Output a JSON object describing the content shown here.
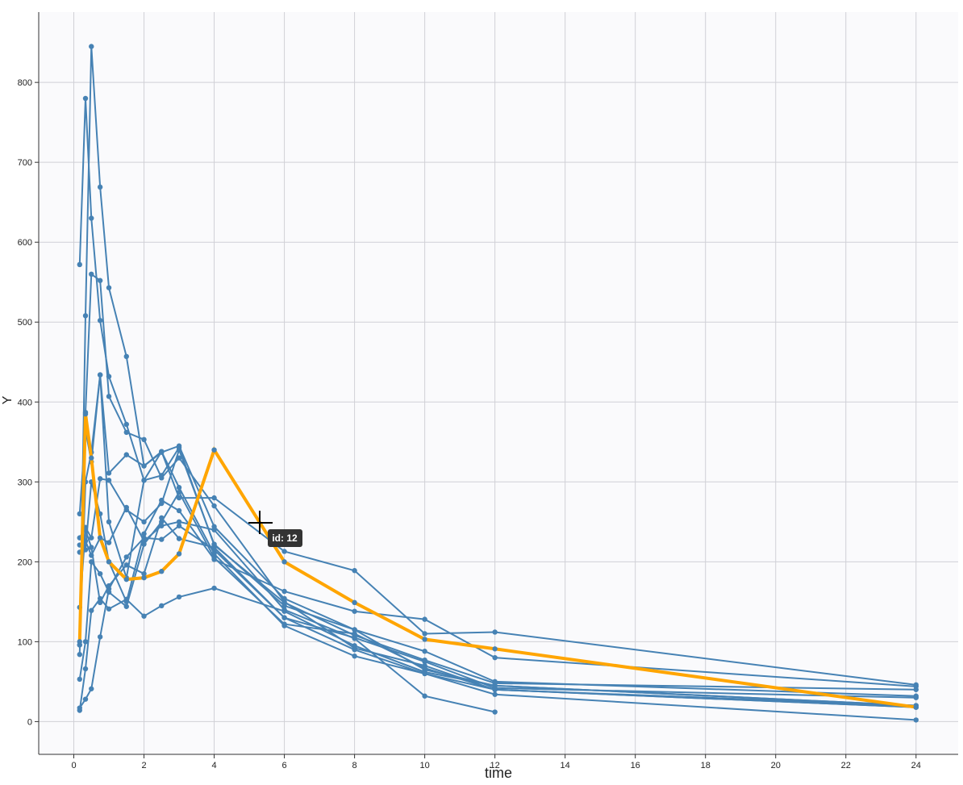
{
  "chart_data": {
    "type": "line",
    "x_label": "time",
    "y_label": "Y",
    "tooltip": "id: 12",
    "x": [
      0.167,
      0.333,
      0.5,
      0.75,
      1,
      1.5,
      2,
      2.5,
      3,
      4,
      6,
      8,
      10,
      12,
      24
    ],
    "xlim": [
      -1.0,
      25.2
    ],
    "ylim": [
      -41,
      888
    ],
    "xticks": [
      0,
      2,
      4,
      6,
      8,
      10,
      12,
      14,
      16,
      18,
      20,
      22,
      24
    ],
    "yticks": [
      0,
      100,
      200,
      300,
      400,
      500,
      600,
      700,
      800
    ],
    "grid": true,
    "series": [
      {
        "color": "#4682b4",
        "values": [
          572,
          780,
          630,
          502,
          432,
          372,
          302,
          338,
          280,
          280,
          213,
          189,
          110,
          112,
          46
        ]
      },
      {
        "color": "#4682b4",
        "values": [
          96,
          508,
          845,
          669,
          543,
          457,
          320,
          337,
          345,
          244,
          154,
          115,
          65,
          45,
          20
        ]
      },
      {
        "color": "#4682b4",
        "values": [
          84,
          387,
          560,
          552,
          407,
          362,
          353,
          305,
          330,
          270,
          150,
          92,
          70,
          40,
          18
        ]
      },
      {
        "color": "#4682b4",
        "values": [
          260,
          365,
          325,
          434,
          311,
          334,
          320,
          338,
          293,
          210,
          120,
          82,
          60,
          34,
          2
        ]
      },
      {
        "color": "#4682b4",
        "values": [
          230,
          243,
          230,
          304,
          302,
          265,
          250,
          273,
          340,
          222,
          145,
          115,
          88,
          50,
          32
        ]
      },
      {
        "color": "#4682b4",
        "values": [
          212,
          215,
          300,
          260,
          200,
          150,
          235,
          277,
          264,
          203,
          163,
          138,
          128,
          80,
          44
        ]
      },
      {
        "color": "#4682b4",
        "values": [
          17,
          28,
          41,
          106,
          166,
          206,
          230,
          228,
          245,
          215,
          130,
          105,
          75,
          42,
          30
        ]
      },
      {
        "color": "#4682b4",
        "values": [
          14,
          66,
          139,
          154,
          141,
          153,
          132,
          145,
          156,
          167,
          138,
          95,
          62,
          45,
          20
        ]
      },
      {
        "color": "#4682b4",
        "values": [
          53,
          100,
          200,
          185,
          162,
          144,
          222,
          250,
          287,
          205,
          122,
          110,
          67,
          40,
          18
        ]
      },
      {
        "color": "#4682b4",
        "values": [
          143,
          240,
          218,
          149,
          170,
          196,
          185,
          255,
          229,
          218,
          130,
          90,
          60,
          40,
          20
        ]
      },
      {
        "color": "#4682b4",
        "values": [
          221,
          226,
          208,
          230,
          224,
          268,
          226,
          245,
          250,
          240,
          140,
          104,
          32,
          12,
          null
        ]
      },
      {
        "color": "#4682b4",
        "values": [
          96,
          300,
          337,
          434,
          250,
          180,
          302,
          308,
          343,
          221,
          149,
          108,
          77,
          48,
          40
        ]
      },
      {
        "color": "#ffa500",
        "values": [
          100,
          385,
          330,
          230,
          200,
          178,
          180,
          188,
          210,
          340,
          200,
          149,
          103,
          91,
          18
        ]
      }
    ]
  }
}
